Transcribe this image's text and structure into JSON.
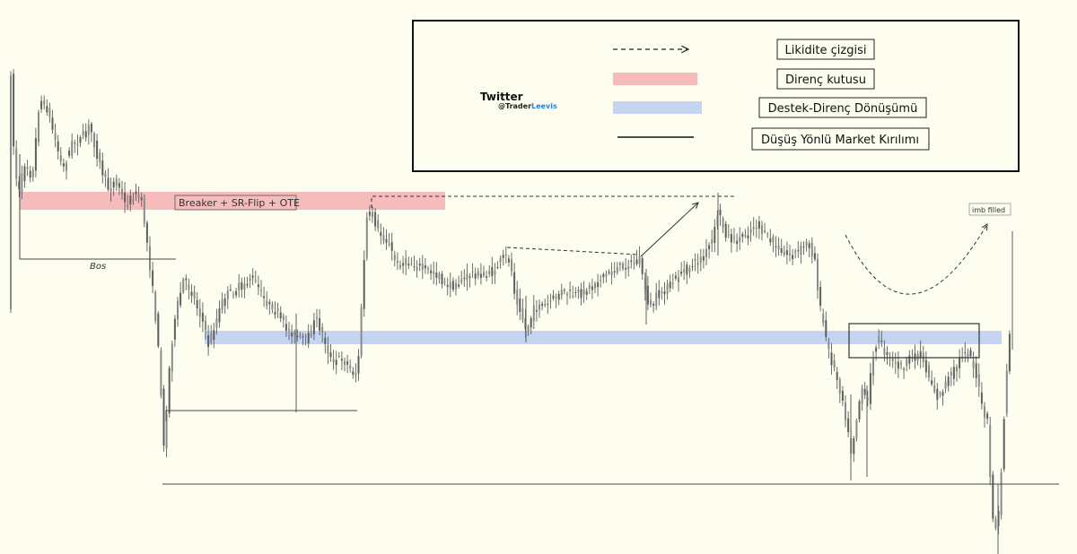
{
  "chart_data": {
    "type": "candlestick",
    "title": "",
    "xlabel": "",
    "ylabel": "",
    "grid": false,
    "y_axis_shown": false,
    "legend_placement": "top-right",
    "colors": {
      "background": "#fdfdf0",
      "candle": "#5e5e5e",
      "resistance_box": "#f6bcbc",
      "support_resistance_flip_box": "#c4d4f2",
      "structure_line": "#4a4a4a",
      "legend_border": "#111111"
    },
    "zones": {
      "resistance_box_label": "Breaker + SR-Flip + OTE",
      "bos_label": "Bos",
      "imbalance_label": "imb filled"
    },
    "annotation_notes": [
      "Dashed liquidity lines mark equal highs",
      "Solid horizontal lines mark bearish market structure breaks",
      "Curved dashed arrow points from the box to the imbalance fill"
    ]
  },
  "legend": {
    "watermark_title": "Twitter",
    "watermark_handle_prefix": "@Trader",
    "watermark_handle_suffix": "Leevis",
    "items": [
      {
        "key": "liquidity",
        "label": "Likidite çizgisi",
        "icon": "dashed-arrow-icon"
      },
      {
        "key": "resistance",
        "label": "Direnç kutusu",
        "icon": "red-swatch-icon"
      },
      {
        "key": "flip",
        "label": "Destek-Direnç Dönüşümü",
        "icon": "blue-swatch-icon"
      },
      {
        "key": "mss",
        "label": "Düşüş Yönlü Market Kırılımı",
        "icon": "solid-line-icon"
      }
    ]
  }
}
